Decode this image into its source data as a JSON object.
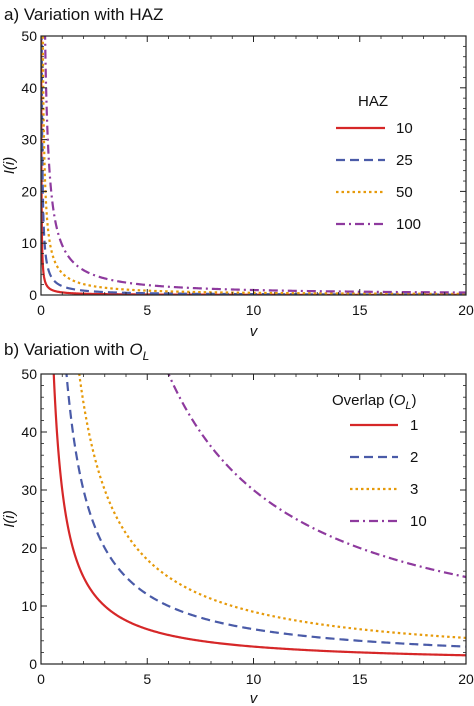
{
  "chart_data": [
    {
      "type": "line",
      "title": "a) Variation with HAZ",
      "title_prefix": "a) Variation with ",
      "title_symbol": "HAZ",
      "title_sub": "",
      "xlabel": "v",
      "ylabel": "I(i)",
      "xlim": [
        0,
        20
      ],
      "ylim": [
        0,
        50
      ],
      "xticks": [
        0,
        5,
        10,
        15,
        20
      ],
      "yticks": [
        0,
        10,
        20,
        30,
        40,
        50
      ],
      "grid": false,
      "legend": {
        "title": "HAZ",
        "title_sym": "",
        "title_sub": "",
        "title_end": "",
        "placement": "top-right"
      },
      "series": [
        {
          "name": "10",
          "color": "#d62728",
          "dash": "solid",
          "k": 0.5,
          "x": [
            0.01,
            0.05,
            0.1,
            0.2,
            0.3,
            0.5,
            1,
            2,
            5,
            10,
            15,
            20
          ],
          "y": [
            50,
            10,
            5,
            2.5,
            1.67,
            1,
            0.5,
            0.25,
            0.1,
            0.05,
            0.033,
            0.025
          ]
        },
        {
          "name": "25",
          "color": "#4a5ba8",
          "dash": "dashed",
          "k": 1.7,
          "x": [
            0.034,
            0.1,
            0.2,
            0.5,
            1,
            2,
            5,
            10,
            15,
            20
          ],
          "y": [
            50,
            17,
            8.5,
            3.4,
            1.7,
            0.85,
            0.34,
            0.17,
            0.11,
            0.085
          ]
        },
        {
          "name": "50",
          "color": "#e69a0a",
          "dash": "dotted",
          "k": 4.2,
          "x": [
            0.084,
            0.2,
            0.5,
            1,
            2,
            5,
            10,
            15,
            20
          ],
          "y": [
            50,
            21,
            8.4,
            4.2,
            2.1,
            0.84,
            0.42,
            0.28,
            0.21
          ]
        },
        {
          "name": "100",
          "color": "#8e3a9e",
          "dash": "dashdot",
          "k": 9.6,
          "x": [
            0.5,
            1,
            2,
            5,
            10,
            15,
            20
          ],
          "y": [
            19.2,
            9.6,
            4.8,
            1.92,
            0.96,
            0.64,
            0.48
          ]
        }
      ]
    },
    {
      "type": "line",
      "title": "b) Variation with O_L",
      "title_prefix": "b) Variation with ",
      "title_symbol": "O",
      "title_sub": "L",
      "xlabel": "v",
      "ylabel": "I(i)",
      "xlim": [
        0,
        20
      ],
      "ylim": [
        0,
        50
      ],
      "xticks": [
        0,
        5,
        10,
        15,
        20
      ],
      "yticks": [
        0,
        10,
        20,
        30,
        40,
        50
      ],
      "grid": false,
      "legend": {
        "title": "Overlap (",
        "title_sym": "O",
        "title_sub": "L",
        "title_end": ")",
        "placement": "top-right"
      },
      "series": [
        {
          "name": "1",
          "color": "#d62728",
          "dash": "solid",
          "k": 30,
          "x": [
            0.6,
            1,
            2,
            3,
            5,
            10,
            15,
            20
          ],
          "y": [
            50,
            30,
            15,
            10,
            6,
            3,
            2,
            1.5
          ]
        },
        {
          "name": "2",
          "color": "#4a5ba8",
          "dash": "dashed",
          "k": 60,
          "x": [
            1.2,
            2,
            3,
            5,
            10,
            15,
            20
          ],
          "y": [
            50,
            30,
            20,
            12,
            6,
            4,
            3
          ]
        },
        {
          "name": "3",
          "color": "#e69a0a",
          "dash": "dotted",
          "k": 90,
          "x": [
            1.8,
            3,
            5,
            10,
            15,
            20
          ],
          "y": [
            50,
            30,
            18,
            9,
            6,
            4.5
          ]
        },
        {
          "name": "10",
          "color": "#8e3a9e",
          "dash": "dashdot",
          "k": 300,
          "x": [
            6,
            8,
            10,
            12,
            15,
            20
          ],
          "y": [
            50,
            37.5,
            30,
            25,
            20,
            15
          ]
        }
      ]
    }
  ]
}
